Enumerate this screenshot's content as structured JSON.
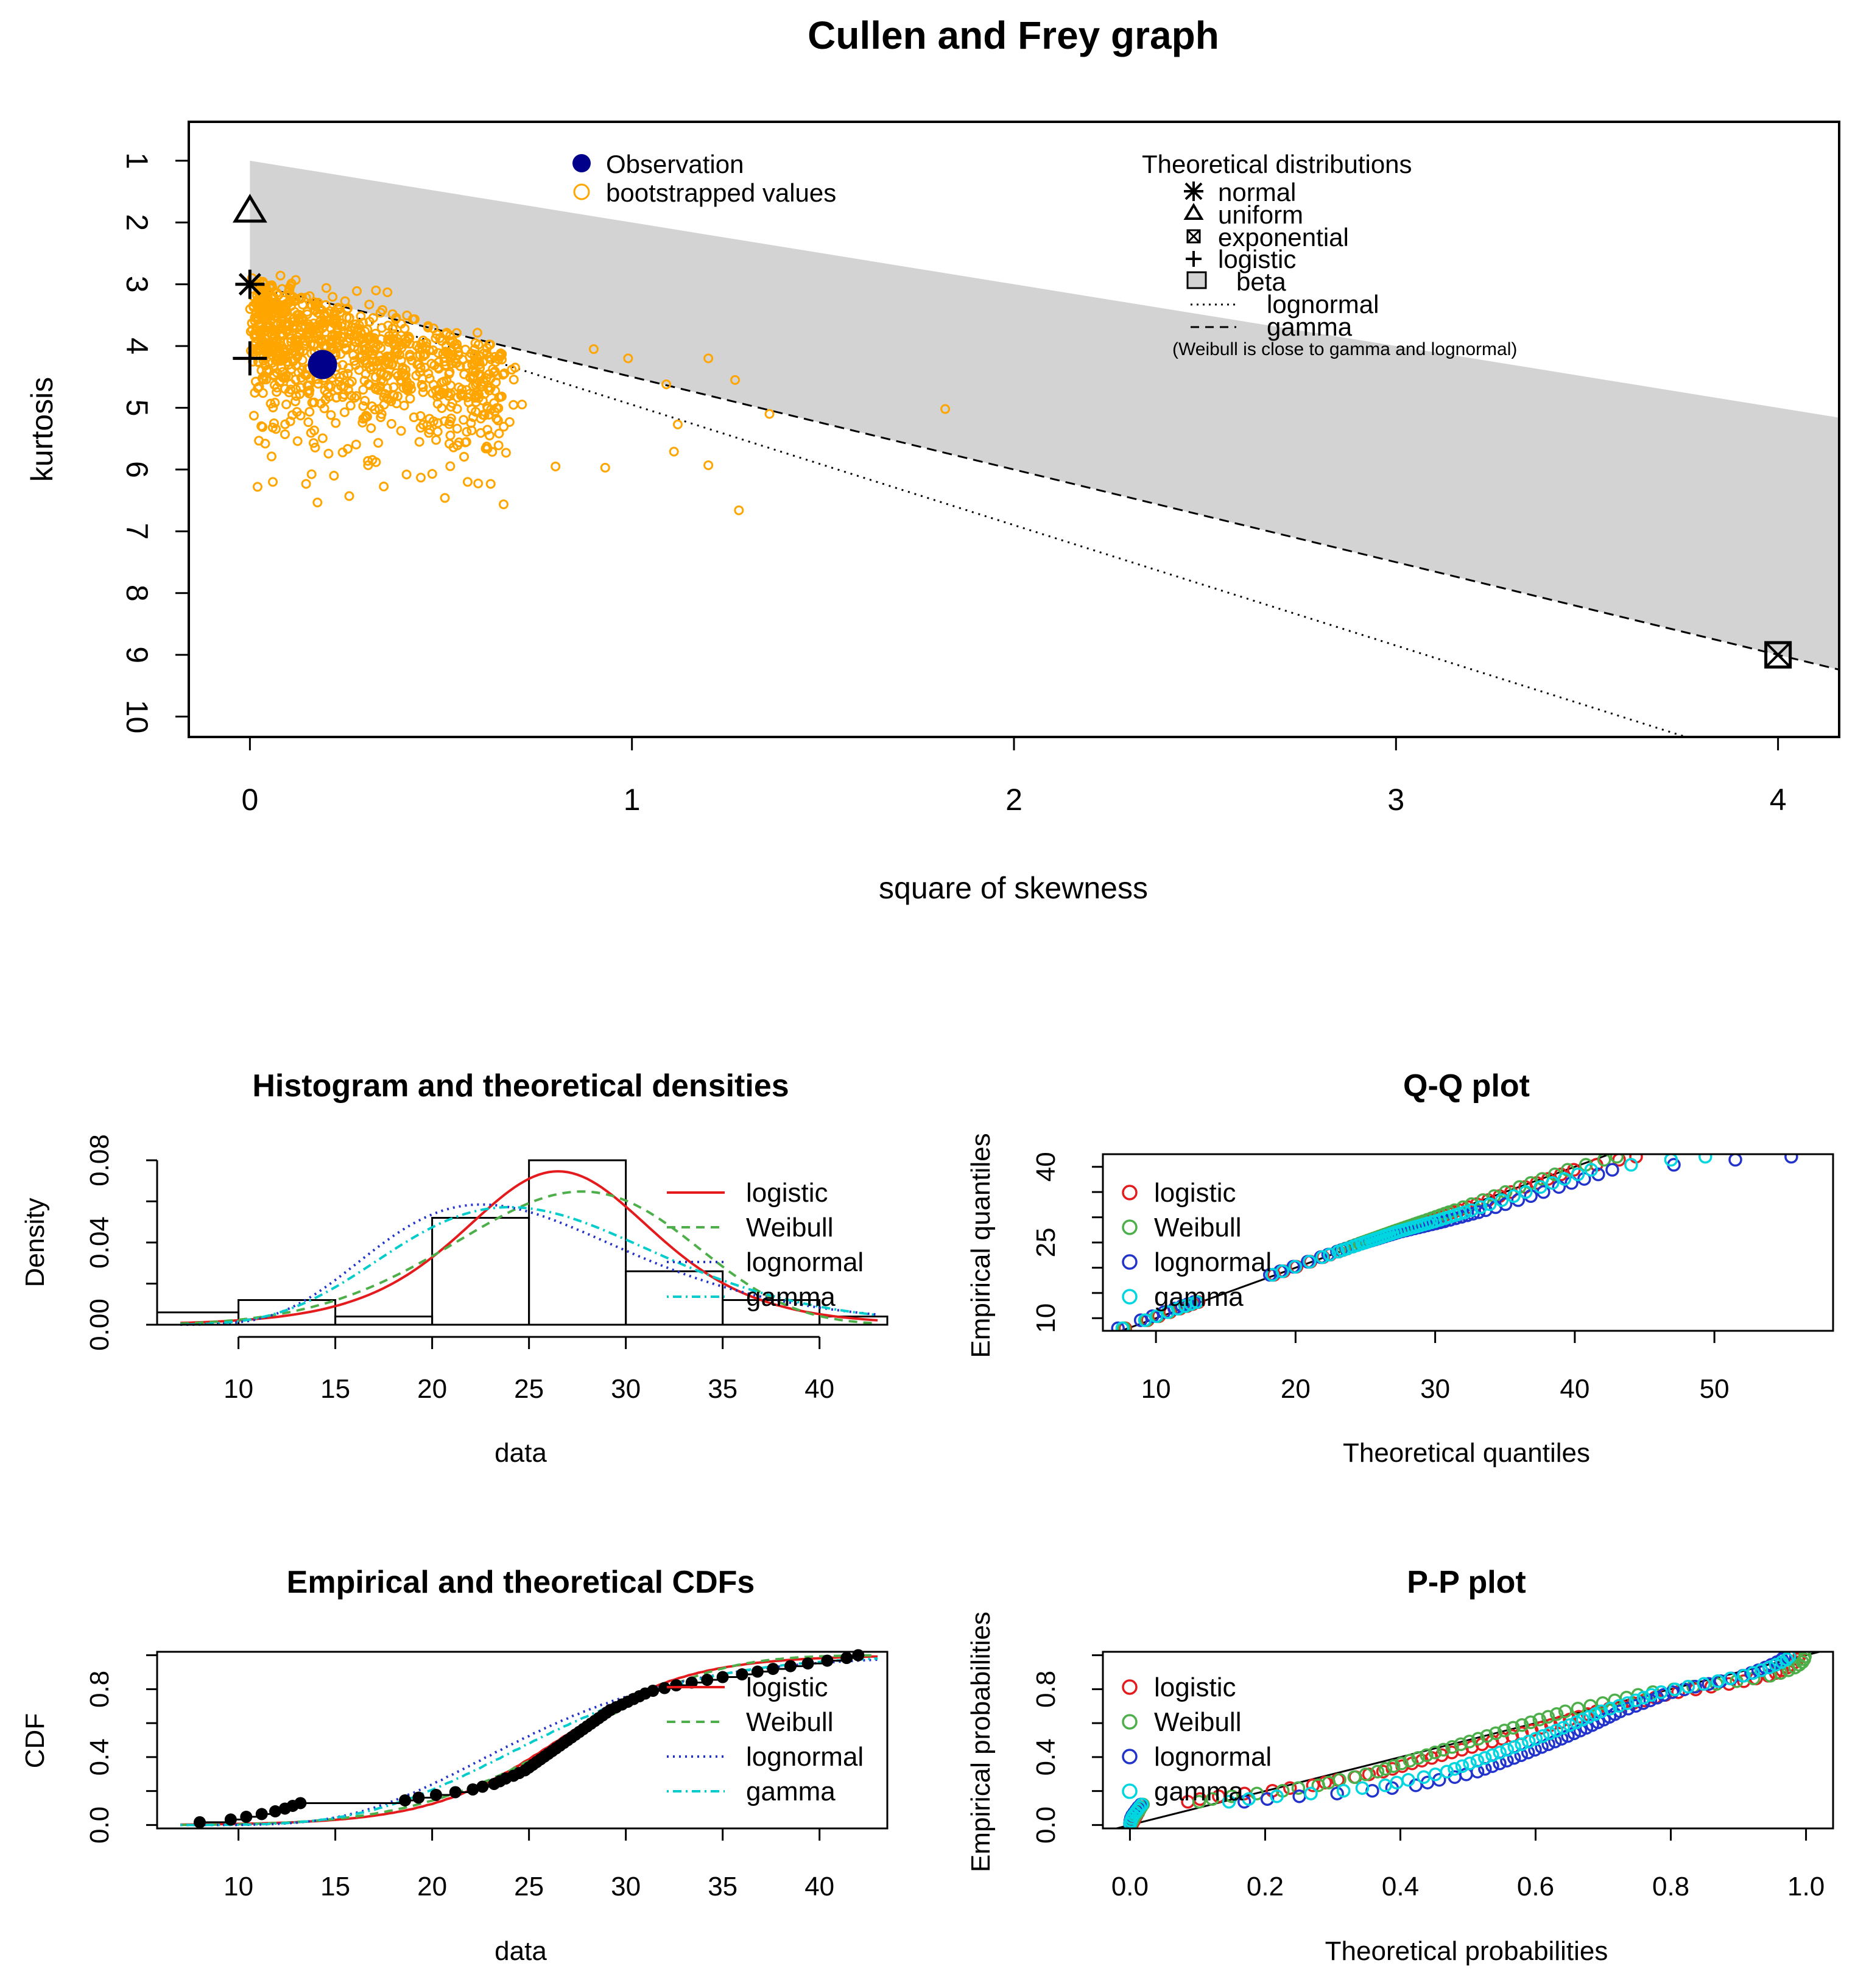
{
  "chart_data": [
    {
      "type": "scatter",
      "id": "cullen-frey",
      "title": "Cullen and Frey graph",
      "xlabel": "square of skewness",
      "ylabel": "kurtosis",
      "xlim": [
        -0.16,
        4.16
      ],
      "ylim": [
        10.33,
        0.37
      ],
      "xticks": [
        0,
        1,
        2,
        3,
        4
      ],
      "yticks": [
        1,
        2,
        3,
        4,
        5,
        6,
        7,
        8,
        9,
        10
      ],
      "observation": {
        "x": 0.19,
        "y": 4.3
      },
      "bootstrap_samples": 1000,
      "bootstrap_sample_points": [
        [
          0.02,
          6.28
        ],
        [
          0.06,
          6.2
        ],
        [
          0.22,
          6.1
        ],
        [
          0.26,
          6.43
        ],
        [
          0.33,
          5.88
        ],
        [
          0.41,
          6.08
        ],
        [
          0.57,
          6.2
        ],
        [
          0.8,
          5.95
        ],
        [
          0.93,
          5.97
        ],
        [
          1.11,
          5.71
        ],
        [
          1.2,
          5.93
        ],
        [
          1.28,
          6.66
        ],
        [
          0.9,
          4.05
        ],
        [
          0.99,
          4.2
        ],
        [
          1.09,
          4.62
        ],
        [
          1.2,
          4.2
        ],
        [
          1.27,
          4.55
        ],
        [
          1.36,
          5.1
        ],
        [
          1.82,
          5.02
        ],
        [
          1.12,
          5.27
        ],
        [
          0.08,
          2.86
        ],
        [
          0.12,
          2.93
        ],
        [
          0.2,
          3.06
        ],
        [
          0.28,
          3.11
        ],
        [
          0.33,
          3.1
        ],
        [
          0.36,
          3.13
        ]
      ],
      "shaded_region": "beta",
      "legend_left": [
        {
          "label": "Observation",
          "color": "#00008b",
          "marker": "filled-circle"
        },
        {
          "label": "bootstrapped values",
          "color": "#ffa500",
          "marker": "open-circle"
        }
      ],
      "legend_right": {
        "title": "Theoretical distributions",
        "items": [
          {
            "label": "normal",
            "marker": "asterisk"
          },
          {
            "label": "uniform",
            "marker": "triangle"
          },
          {
            "label": "exponential",
            "marker": "boxed-x"
          },
          {
            "label": "logistic",
            "marker": "plus"
          },
          {
            "label": "beta",
            "marker": "grey-box"
          },
          {
            "label": "lognormal",
            "marker": "dotted-line"
          },
          {
            "label": "gamma",
            "marker": "dashed-line"
          }
        ],
        "note": "(Weibull is close to gamma and lognormal)"
      },
      "theoretical_points": [
        {
          "name": "normal",
          "x": 0,
          "y": 3
        },
        {
          "name": "uniform",
          "x": 0,
          "y": 1.8
        },
        {
          "name": "logistic",
          "x": 0,
          "y": 4.2
        },
        {
          "name": "exponential",
          "x": 4,
          "y": 9
        }
      ]
    },
    {
      "type": "bar",
      "id": "histogram",
      "title": "Histogram and theoretical densities",
      "xlabel": "data",
      "ylabel": "Density",
      "xlim": [
        5.8,
        43.5
      ],
      "ylim": [
        0,
        0.08
      ],
      "xticks": [
        10,
        15,
        20,
        25,
        30,
        35,
        40
      ],
      "yticks": [
        "0.00",
        "0.04",
        "0.08"
      ],
      "bins": [
        [
          5,
          10,
          0.006
        ],
        [
          10,
          15,
          0.012
        ],
        [
          15,
          20,
          0.004
        ],
        [
          20,
          25,
          0.052
        ],
        [
          25,
          30,
          0.08
        ],
        [
          30,
          35,
          0.026
        ],
        [
          35,
          40,
          0.012
        ],
        [
          40,
          45,
          0.004
        ]
      ],
      "series": [
        {
          "name": "logistic",
          "color": "#e41a1c",
          "style": "solid",
          "dist": "logistic",
          "p1": 26.5,
          "p2": 3.35
        },
        {
          "name": "Weibull",
          "color": "#4daf4a",
          "style": "dashed",
          "dist": "weibull",
          "p1": 5.0,
          "p2": 29.0
        },
        {
          "name": "lognormal",
          "color": "#2233cc",
          "style": "dotted",
          "dist": "lognormal",
          "p1": 3.2,
          "p2": 0.29
        },
        {
          "name": "gamma",
          "color": "#00cccc",
          "style": "dotdash",
          "dist": "gamma",
          "p1": 13.0,
          "p2": 2.0
        }
      ],
      "legend": [
        "logistic",
        "Weibull",
        "lognormal",
        "gamma"
      ]
    },
    {
      "type": "scatter",
      "id": "qq",
      "title": "Q-Q plot",
      "xlabel": "Theoretical quantiles",
      "ylabel": "Empirical quantiles",
      "xlim": [
        6.2,
        58.5
      ],
      "ylim": [
        7.5,
        42.5
      ],
      "xticks": [
        10,
        20,
        30,
        40,
        50
      ],
      "yticks": [
        10,
        25,
        40
      ],
      "minor_yticks": [
        15,
        20,
        30,
        35
      ],
      "series": [
        {
          "name": "logistic",
          "color": "#e41a1c"
        },
        {
          "name": "Weibull",
          "color": "#4daf4a"
        },
        {
          "name": "lognormal",
          "color": "#2233cc"
        },
        {
          "name": "gamma",
          "color": "#00d6e0"
        }
      ],
      "legend": [
        "logistic",
        "Weibull",
        "lognormal",
        "gamma"
      ]
    },
    {
      "type": "line",
      "id": "cdf",
      "title": "Empirical and theoretical CDFs",
      "xlabel": "data",
      "ylabel": "CDF",
      "xlim": [
        5.8,
        43.5
      ],
      "ylim": [
        -0.02,
        1.02
      ],
      "xticks": [
        10,
        15,
        20,
        25,
        30,
        35,
        40
      ],
      "yticks": [
        "0.0",
        "0.4",
        "0.8"
      ],
      "series": [
        {
          "name": "logistic",
          "color": "#e41a1c",
          "style": "solid"
        },
        {
          "name": "Weibull",
          "color": "#4daf4a",
          "style": "dashed"
        },
        {
          "name": "lognormal",
          "color": "#2233cc",
          "style": "dotted"
        },
        {
          "name": "gamma",
          "color": "#00cccc",
          "style": "dotdash"
        }
      ],
      "legend": [
        "logistic",
        "Weibull",
        "lognormal",
        "gamma"
      ]
    },
    {
      "type": "scatter",
      "id": "pp",
      "title": "P-P plot",
      "xlabel": "Theoretical probabilities",
      "ylabel": "Empirical probabilities",
      "xlim": [
        -0.04,
        1.04
      ],
      "ylim": [
        -0.02,
        1.02
      ],
      "xticks": [
        "0.0",
        "0.2",
        "0.4",
        "0.6",
        "0.8",
        "1.0"
      ],
      "yticks": [
        "0.0",
        "0.4",
        "0.8"
      ],
      "series": [
        {
          "name": "logistic",
          "color": "#e41a1c"
        },
        {
          "name": "Weibull",
          "color": "#4daf4a"
        },
        {
          "name": "lognormal",
          "color": "#2233cc"
        },
        {
          "name": "gamma",
          "color": "#00d6e0"
        }
      ],
      "legend": [
        "logistic",
        "Weibull",
        "lognormal",
        "gamma"
      ]
    }
  ],
  "sample_data": [
    8,
    9.6,
    10.4,
    11.2,
    11.9,
    12.4,
    12.8,
    13.2,
    18.6,
    19.3,
    20.2,
    21.2,
    22.1,
    22.6,
    23.2,
    23.5,
    23.8,
    24.2,
    24.5,
    24.8,
    25.0,
    25.2,
    25.4,
    25.6,
    25.8,
    26.0,
    26.2,
    26.4,
    26.6,
    26.8,
    27.0,
    27.2,
    27.4,
    27.6,
    27.8,
    28.0,
    28.2,
    28.4,
    28.6,
    28.8,
    29.0,
    29.2,
    29.5,
    29.8,
    30.1,
    30.4,
    30.7,
    31.0,
    31.4,
    32.0,
    32.6,
    33.4,
    34.2,
    35.0,
    36.0,
    36.8,
    37.6,
    38.5,
    39.4,
    40.4,
    41.4,
    42.0
  ]
}
